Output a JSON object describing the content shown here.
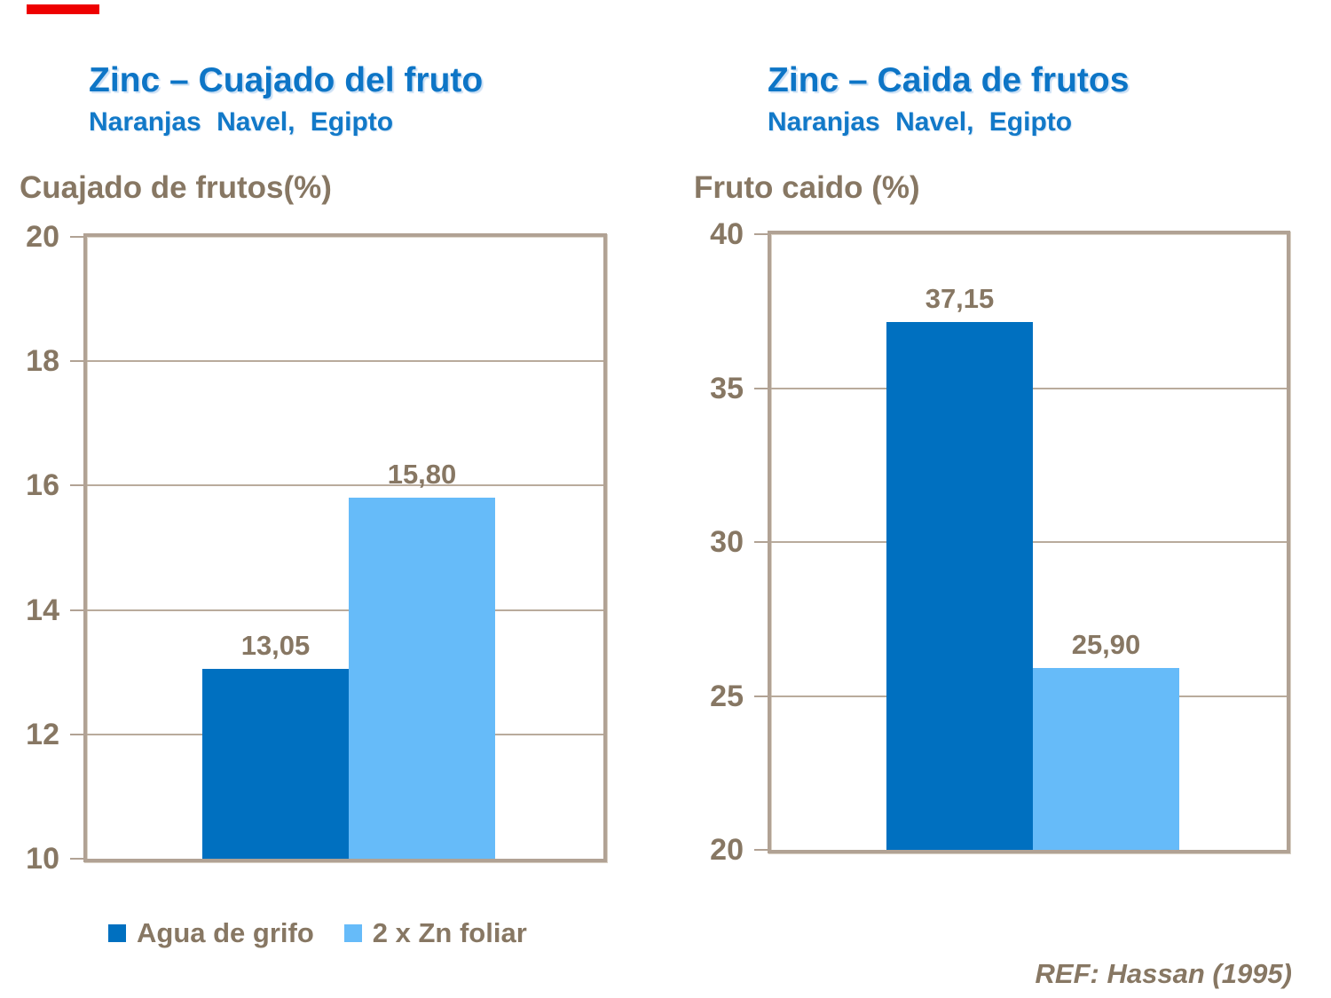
{
  "slide": {
    "accent_bar_color": "#ee0000",
    "ref_text": "REF: Hassan (1995)"
  },
  "colors": {
    "title_blue": "#0d75c6",
    "text_brown": "#877763",
    "frame_taupe": "#b1a294",
    "series_dark_blue": "#0070c0",
    "series_light_blue": "#66bbf9"
  },
  "left_chart": {
    "title": "Zinc – Cuajado del fruto",
    "subtitle": "Naranjas Navel, Egipto",
    "axis_title": "Cuajado de frutos(%)"
  },
  "right_chart": {
    "title": "Zinc – Caida de frutos",
    "subtitle": "Naranjas Navel, Egipto",
    "axis_title": "Fruto caido (%)"
  },
  "legend": {
    "items": [
      {
        "label": "Agua de grifo",
        "color": "#0070c0"
      },
      {
        "label": "2 x Zn foliar",
        "color": "#66bbf9"
      }
    ]
  },
  "chart_data": [
    {
      "id": "left",
      "type": "bar",
      "title": "Zinc – Cuajado del fruto",
      "subtitle": "Naranjas Navel, Egipto",
      "ylabel": "Cuajado de frutos(%)",
      "xlabel": "",
      "categories": [
        "Agua de grifo",
        "2 x Zn foliar"
      ],
      "values": [
        13.05,
        15.8
      ],
      "value_labels": [
        "13,05",
        "15,80"
      ],
      "bar_colors": [
        "#0070c0",
        "#66bbf9"
      ],
      "ylim": [
        10,
        20
      ],
      "yticks": [
        10,
        12,
        14,
        16,
        18,
        20
      ],
      "grid": true,
      "legend_position": "bottom"
    },
    {
      "id": "right",
      "type": "bar",
      "title": "Zinc – Caida de frutos",
      "subtitle": "Naranjas Navel, Egipto",
      "ylabel": "Fruto caido (%)",
      "xlabel": "",
      "categories": [
        "Agua de grifo",
        "2 x Zn foliar"
      ],
      "values": [
        37.15,
        25.9
      ],
      "value_labels": [
        "37,15",
        "25,90"
      ],
      "bar_colors": [
        "#0070c0",
        "#66bbf9"
      ],
      "ylim": [
        20,
        40
      ],
      "yticks": [
        20,
        25,
        30,
        35,
        40
      ],
      "grid": true,
      "legend_position": "none"
    }
  ]
}
